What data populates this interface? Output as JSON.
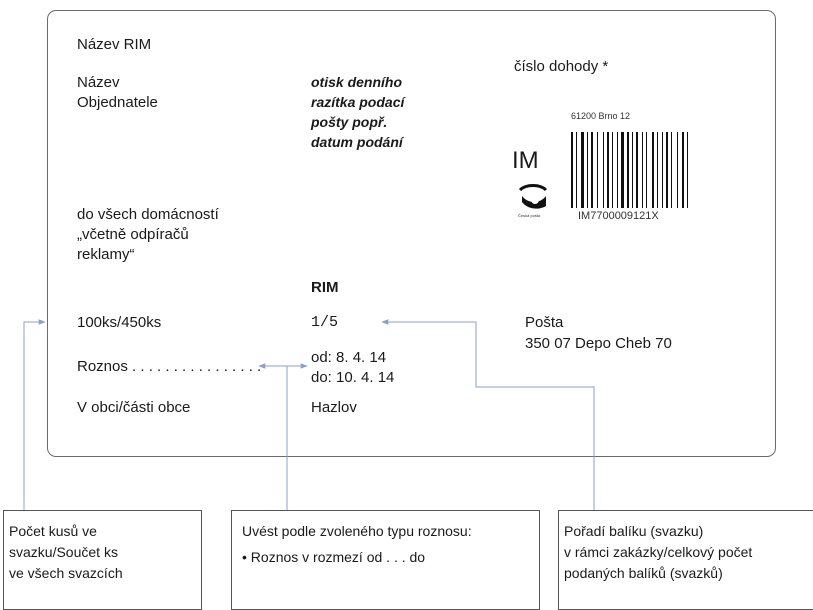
{
  "card": {
    "nazev_rim": "Název RIM",
    "nazev_objednatele": "Název\nObjednatele",
    "stamp_text": "otisk denního\nrazítka podací\npošty popř.\ndatum podání",
    "cislo_dohody": "číslo dohody *",
    "im_label": "IM",
    "barcode_top": "61200 Brno 12",
    "barcode_bottom": "IM7700009121X",
    "logo_caption": "Česká pošta",
    "households": "do všech domácností\n„včetně odpíračů\nreklamy“",
    "rim": "RIM",
    "count": "100ks/450ks",
    "fraction": "1/5",
    "posta_label": "Pošta",
    "posta_value": "350 07  Depo Cheb 70",
    "roznos_label": "Roznos . . . . . . . . . . . . . . . .",
    "od": "od: 8. 4. 14",
    "do": "do: 10. 4. 14",
    "obec_label": "V obci/části obce",
    "obec_value": "Hazlov"
  },
  "callouts": {
    "left": "Počet kusů ve\nsvazku/Součet ks\nve všech svazcích",
    "middle_title": "Uvést podle zvoleného typu roznosu:",
    "middle_bullet": "• Roznos v rozmezí od . . . do",
    "right": "Pořadí balíku (svazku)\nv rámci zakázky/celkový počet\npodaných balíků (svazků)"
  },
  "colors": {
    "arrow": "#8aa2c8",
    "border": "#6b6b6b"
  },
  "icons": [
    "post-horn-logo-icon",
    "barcode-icon"
  ]
}
